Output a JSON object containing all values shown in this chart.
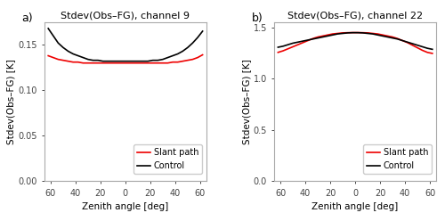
{
  "title_a": "Stdev(Obs–FG), channel 9",
  "title_b": "Stdev(Obs–FG), channel 22",
  "xlabel": "Zenith angle [deg]",
  "ylabel_a": "Stdev(Obs–FG) [K]",
  "ylabel_b": "Stdev(Obs–FG) [K]",
  "label_a": "a)",
  "label_b": "b)",
  "legend_slant": "Slant path",
  "legend_control": "Control",
  "color_slant": "#ee0000",
  "color_control": "#000000",
  "background_color": "#ffffff",
  "panel_bg": "#ffffff",
  "ylim_a": [
    0.0,
    0.175
  ],
  "ylim_b": [
    0.0,
    1.55
  ],
  "yticks_a": [
    0.0,
    0.05,
    0.1,
    0.15
  ],
  "yticks_b": [
    0.0,
    0.5,
    1.0,
    1.5
  ],
  "ch9_x": [
    -62,
    -58,
    -54,
    -50,
    -46,
    -42,
    -38,
    -34,
    -30,
    -26,
    -22,
    -18,
    -14,
    -10,
    -6,
    -2,
    2,
    6,
    10,
    14,
    18,
    22,
    26,
    30,
    34,
    38,
    42,
    46,
    50,
    54,
    58,
    62
  ],
  "ch9_slant": [
    0.138,
    0.136,
    0.134,
    0.133,
    0.132,
    0.131,
    0.131,
    0.13,
    0.13,
    0.13,
    0.13,
    0.13,
    0.13,
    0.13,
    0.13,
    0.13,
    0.13,
    0.13,
    0.13,
    0.13,
    0.13,
    0.13,
    0.13,
    0.13,
    0.13,
    0.131,
    0.131,
    0.132,
    0.133,
    0.134,
    0.136,
    0.139
  ],
  "ch9_control": [
    0.168,
    0.16,
    0.152,
    0.147,
    0.143,
    0.14,
    0.138,
    0.136,
    0.134,
    0.133,
    0.133,
    0.132,
    0.132,
    0.132,
    0.132,
    0.132,
    0.132,
    0.132,
    0.132,
    0.132,
    0.132,
    0.133,
    0.133,
    0.134,
    0.136,
    0.138,
    0.14,
    0.143,
    0.147,
    0.152,
    0.158,
    0.165
  ],
  "ch22_x": [
    -62,
    -58,
    -54,
    -50,
    -46,
    -42,
    -38,
    -34,
    -30,
    -26,
    -22,
    -18,
    -14,
    -10,
    -6,
    -2,
    2,
    6,
    10,
    14,
    18,
    22,
    26,
    30,
    34,
    38,
    42,
    46,
    50,
    54,
    58,
    62
  ],
  "ch22_slant": [
    1.255,
    1.27,
    1.29,
    1.31,
    1.33,
    1.35,
    1.37,
    1.39,
    1.405,
    1.415,
    1.425,
    1.435,
    1.44,
    1.445,
    1.447,
    1.448,
    1.448,
    1.447,
    1.445,
    1.44,
    1.435,
    1.425,
    1.415,
    1.405,
    1.39,
    1.37,
    1.35,
    1.325,
    1.3,
    1.275,
    1.255,
    1.245
  ],
  "ch22_control": [
    1.305,
    1.315,
    1.33,
    1.345,
    1.355,
    1.365,
    1.375,
    1.385,
    1.395,
    1.405,
    1.415,
    1.425,
    1.435,
    1.44,
    1.445,
    1.447,
    1.447,
    1.445,
    1.44,
    1.435,
    1.425,
    1.415,
    1.405,
    1.395,
    1.385,
    1.37,
    1.355,
    1.34,
    1.325,
    1.31,
    1.295,
    1.285
  ],
  "linewidth": 1.2,
  "tick_fontsize": 7,
  "label_fontsize": 7.5,
  "title_fontsize": 8,
  "panel_label_fontsize": 9,
  "spine_color": "#aaaaaa",
  "grid_color": "#dddddd"
}
